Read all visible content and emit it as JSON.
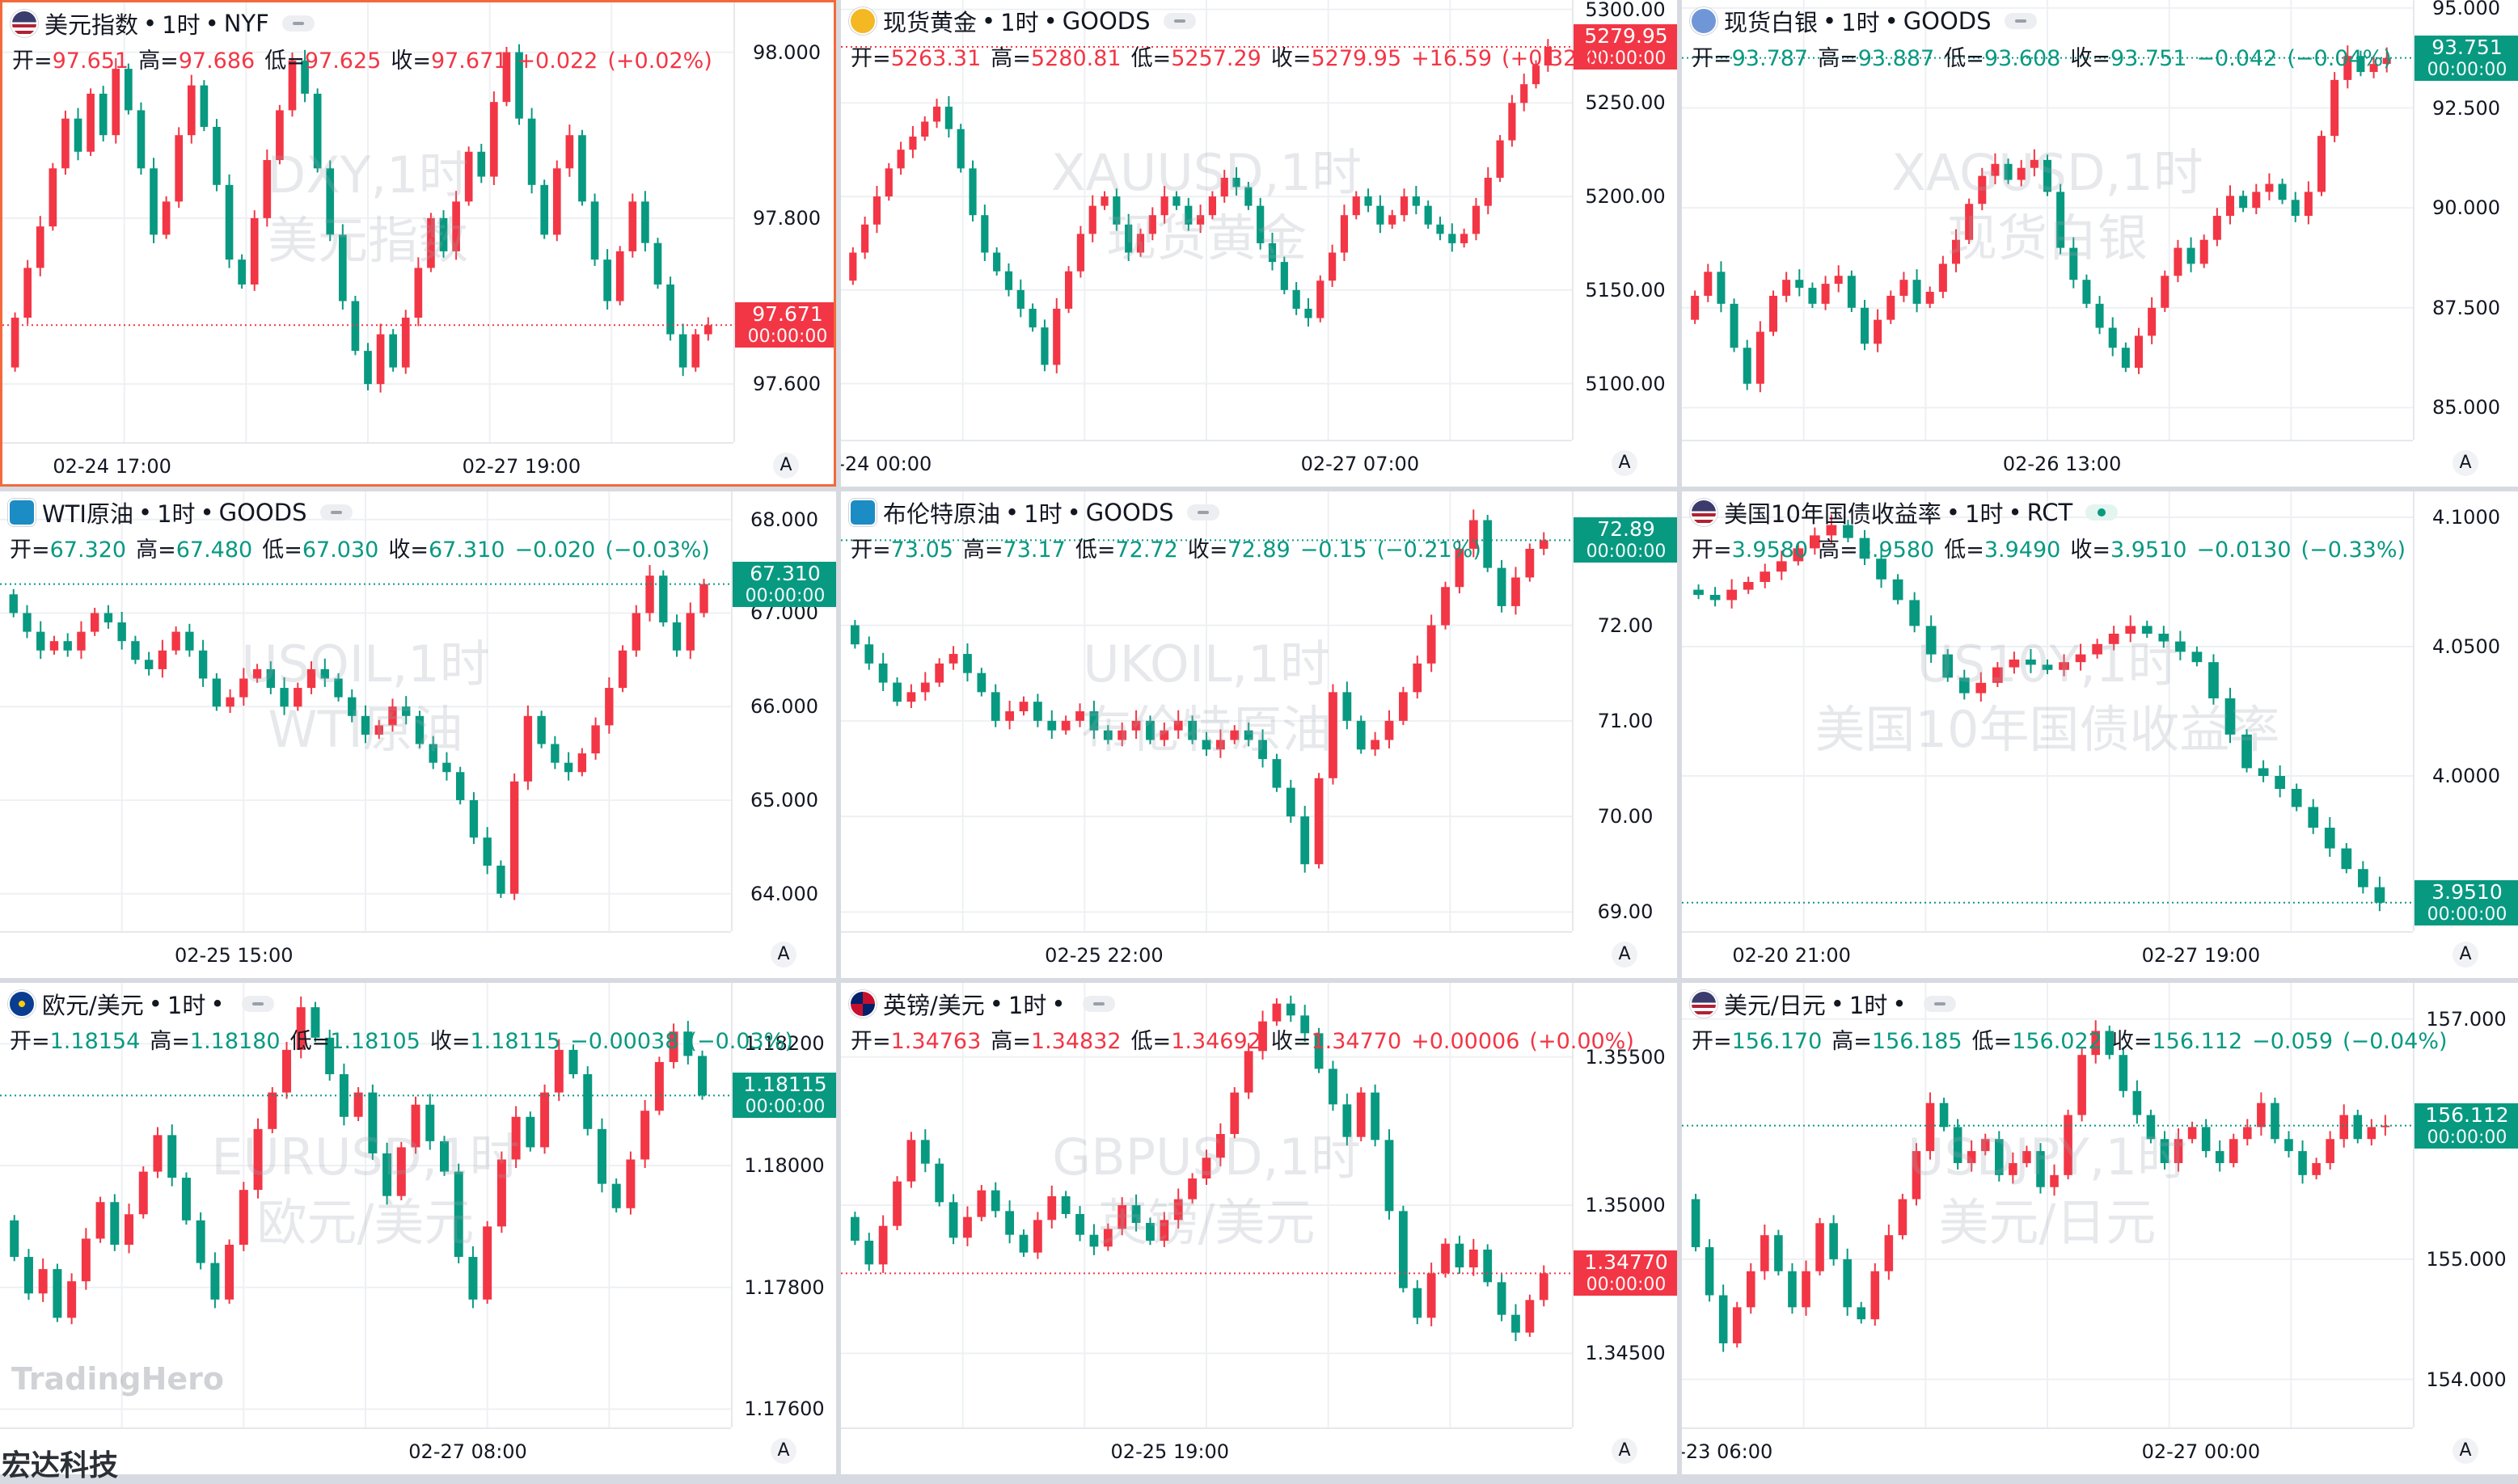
{
  "brand": {
    "logo": "TradingHero",
    "company": "宏达科技"
  },
  "colors": {
    "up": "#f23645",
    "down": "#089981",
    "active_border": "#f26a3c"
  },
  "charts": [
    {
      "id": "dxy",
      "name": "美元指数",
      "interval": "1时",
      "source": "NYF",
      "flag": "us",
      "icon": "us-flag-icon",
      "ohlc": {
        "open": "97.651",
        "high": "97.686",
        "low": "97.625",
        "close": "97.671",
        "change": "+0.022",
        "change_pct": "(+0.02%)"
      },
      "direction": "up",
      "active": true,
      "watermark": {
        "symbol": "DXY,1时",
        "desc": "美元指数"
      },
      "y_ticks": [
        "98.000",
        "97.800",
        "97.600"
      ],
      "y_range": [
        97.53,
        98.06
      ],
      "price": {
        "value": "97.671",
        "time": "00:00:00",
        "level": 97.671
      },
      "x_ticks": [
        "02-24 17:00",
        "02-27 19:00"
      ],
      "x_tick_pos": [
        0.15,
        0.71
      ],
      "series": [
        97.68,
        97.74,
        97.79,
        97.86,
        97.92,
        97.88,
        97.95,
        97.9,
        97.98,
        97.93,
        97.86,
        97.78,
        97.82,
        97.9,
        97.96,
        97.91,
        97.84,
        97.75,
        97.72,
        97.8,
        97.87,
        97.93,
        97.99,
        97.95,
        97.86,
        97.78,
        97.7,
        97.64,
        97.6,
        97.66,
        97.62,
        97.68,
        97.74,
        97.8,
        97.76,
        97.82,
        97.88,
        97.85,
        97.94,
        98.0,
        97.92,
        97.84,
        97.78,
        97.86,
        97.9,
        97.82,
        97.75,
        97.7,
        97.76,
        97.82,
        97.77,
        97.72,
        97.66,
        97.62,
        97.66,
        97.671
      ],
      "plot": {
        "top": 60,
        "bottom": 520
      }
    },
    {
      "id": "xau",
      "name": "现货黄金",
      "interval": "1时",
      "source": "GOODS",
      "flag": "gold",
      "icon": "gold-coin-icon",
      "ohlc": {
        "open": "5263.31",
        "high": "5280.81",
        "low": "5257.29",
        "close": "5279.95",
        "change": "+16.59",
        "change_pct": "(+0.32%)"
      },
      "direction": "up",
      "active": false,
      "watermark": {
        "symbol": "XAUUSD,1时",
        "desc": "现货黄金"
      },
      "y_ticks": [
        "5300.00",
        "5250.00",
        "5200.00",
        "5150.00",
        "5100.00"
      ],
      "y_range": [
        5070,
        5305
      ],
      "price": {
        "value": "5279.95",
        "time": "00:00:00",
        "level": 5279.95
      },
      "x_ticks": [
        "-24 00:00",
        "02-27 07:00"
      ],
      "x_tick_pos": [
        0.06,
        0.71
      ],
      "series": [
        5170,
        5185,
        5200,
        5215,
        5225,
        5232,
        5240,
        5248,
        5236,
        5215,
        5190,
        5170,
        5160,
        5150,
        5140,
        5130,
        5110,
        5140,
        5160,
        5180,
        5195,
        5200,
        5185,
        5170,
        5180,
        5190,
        5200,
        5195,
        5185,
        5190,
        5200,
        5210,
        5205,
        5195,
        5175,
        5165,
        5150,
        5140,
        5135,
        5155,
        5170,
        5190,
        5200,
        5195,
        5185,
        5190,
        5200,
        5195,
        5185,
        5180,
        5175,
        5180,
        5195,
        5210,
        5230,
        5250,
        5260,
        5270,
        5279.95
      ],
      "plot": {
        "top": 60,
        "bottom": 500
      }
    },
    {
      "id": "xag",
      "name": "现货白银",
      "interval": "1时",
      "source": "GOODS",
      "flag": "silver",
      "icon": "silver-icon",
      "ohlc": {
        "open": "93.787",
        "high": "93.887",
        "low": "93.608",
        "close": "93.751",
        "change": "−0.042",
        "change_pct": "(−0.04%)"
      },
      "direction": "down",
      "active": false,
      "watermark": {
        "symbol": "XAGUSD,1时",
        "desc": "现货白银"
      },
      "y_ticks": [
        "95.000",
        "92.500",
        "90.000",
        "87.500",
        "85.000"
      ],
      "y_range": [
        84.2,
        95.2
      ],
      "price": {
        "value": "93.751",
        "time": "00:00:00",
        "level": 93.751
      },
      "x_ticks": [
        "02-26 13:00"
      ],
      "x_tick_pos": [
        0.52
      ],
      "series": [
        87.8,
        88.4,
        87.6,
        86.5,
        85.6,
        86.9,
        87.8,
        88.2,
        88.0,
        87.6,
        88.1,
        88.3,
        87.5,
        86.6,
        87.2,
        87.8,
        88.2,
        87.6,
        87.9,
        88.6,
        89.2,
        90.1,
        90.8,
        91.1,
        90.7,
        91.0,
        91.2,
        90.4,
        89.0,
        88.2,
        87.6,
        87.0,
        86.5,
        86.0,
        86.8,
        87.5,
        88.3,
        89.0,
        88.6,
        89.2,
        89.8,
        90.3,
        90.0,
        90.4,
        90.6,
        90.2,
        89.8,
        90.4,
        91.8,
        93.2,
        93.8,
        93.4,
        93.6,
        93.751
      ],
      "plot": {
        "top": 60,
        "bottom": 500
      }
    },
    {
      "id": "usoil",
      "name": "WTI原油",
      "interval": "1时",
      "source": "GOODS",
      "flag": "oil",
      "icon": "oil-barrel-icon",
      "ohlc": {
        "open": "67.320",
        "high": "67.480",
        "low": "67.030",
        "close": "67.310",
        "change": "−0.020",
        "change_pct": "(−0.03%)"
      },
      "direction": "down",
      "active": false,
      "watermark": {
        "symbol": "USOIL,1时",
        "desc": "WTI原油"
      },
      "y_ticks": [
        "68.000",
        "67.000",
        "66.000",
        "65.000",
        "64.000"
      ],
      "y_range": [
        63.6,
        68.3
      ],
      "price": {
        "value": "67.310",
        "time": "00:00:00",
        "level": 67.31
      },
      "x_ticks": [
        "02-25 15:00"
      ],
      "x_tick_pos": [
        0.32
      ],
      "series": [
        67.0,
        66.8,
        66.6,
        66.7,
        66.6,
        66.8,
        67.0,
        66.9,
        66.7,
        66.5,
        66.4,
        66.6,
        66.8,
        66.6,
        66.3,
        66.0,
        66.1,
        66.3,
        66.4,
        66.2,
        66.0,
        66.2,
        66.4,
        66.3,
        66.1,
        65.9,
        65.7,
        65.8,
        66.0,
        65.9,
        65.6,
        65.4,
        65.3,
        65.0,
        64.6,
        64.3,
        64.0,
        65.2,
        65.9,
        65.6,
        65.4,
        65.3,
        65.5,
        65.8,
        66.2,
        66.6,
        67.0,
        67.4,
        66.9,
        66.6,
        67.0,
        67.31
      ],
      "plot": {
        "top": 60,
        "bottom": 500
      }
    },
    {
      "id": "ukoil",
      "name": "布伦特原油",
      "interval": "1时",
      "source": "GOODS",
      "flag": "oil",
      "icon": "oil-barrel-icon",
      "ohlc": {
        "open": "73.05",
        "high": "73.17",
        "low": "72.72",
        "close": "72.89",
        "change": "−0.15",
        "change_pct": "(−0.21%)"
      },
      "direction": "down",
      "active": false,
      "watermark": {
        "symbol": "UKOIL,1时",
        "desc": "布伦特原油"
      },
      "y_ticks": [
        "72.00",
        "71.00",
        "70.00",
        "69.00"
      ],
      "y_range": [
        68.8,
        73.4
      ],
      "price": {
        "value": "72.89",
        "time": "00:00:00",
        "level": 72.89
      },
      "x_ticks": [
        "02-25 22:00"
      ],
      "x_tick_pos": [
        0.36
      ],
      "series": [
        71.8,
        71.6,
        71.4,
        71.2,
        71.3,
        71.4,
        71.6,
        71.7,
        71.5,
        71.3,
        71.0,
        71.1,
        71.2,
        71.0,
        70.9,
        71.0,
        71.1,
        70.9,
        70.8,
        70.9,
        71.0,
        70.8,
        70.9,
        71.0,
        70.8,
        70.7,
        70.8,
        70.9,
        70.8,
        70.6,
        70.3,
        70.0,
        69.5,
        70.4,
        71.3,
        71.0,
        70.7,
        70.8,
        71.0,
        71.3,
        71.6,
        72.0,
        72.4,
        72.8,
        73.1,
        72.6,
        72.2,
        72.5,
        72.8,
        72.89
      ],
      "plot": {
        "top": 60,
        "bottom": 500
      }
    },
    {
      "id": "us10y",
      "name": "美国10年国债收益率",
      "interval": "1时",
      "source": "RCT",
      "flag": "us",
      "icon": "us-flag-icon",
      "ohlc": {
        "open": "3.9580",
        "high": "3.9580",
        "low": "3.9490",
        "close": "3.9510",
        "change": "−0.0130",
        "change_pct": "(−0.33%)"
      },
      "direction": "down",
      "active": false,
      "live": true,
      "watermark": {
        "symbol": "US10Y,1时",
        "desc": "美国10年国债收益率"
      },
      "y_ticks": [
        "4.1000",
        "4.0500",
        "4.0000"
      ],
      "y_range": [
        3.94,
        4.11
      ],
      "price": {
        "value": "3.9510",
        "time": "00:00:00",
        "level": 3.951
      },
      "x_ticks": [
        "02-20 21:00",
        "02-27 19:00"
      ],
      "x_tick_pos": [
        0.15,
        0.71
      ],
      "series": [
        4.07,
        4.068,
        4.072,
        4.075,
        4.079,
        4.083,
        4.088,
        4.093,
        4.097,
        4.092,
        4.084,
        4.076,
        4.068,
        4.058,
        4.047,
        4.038,
        4.032,
        4.036,
        4.042,
        4.045,
        4.043,
        4.041,
        4.044,
        4.047,
        4.051,
        4.055,
        4.058,
        4.055,
        4.052,
        4.048,
        4.044,
        4.03,
        4.016,
        4.003,
        4.0,
        3.995,
        3.988,
        3.98,
        3.972,
        3.964,
        3.957,
        3.951
      ],
      "plot": {
        "top": 60,
        "bottom": 500
      }
    },
    {
      "id": "eurusd",
      "name": "欧元/美元",
      "interval": "1时",
      "source": "",
      "flag": "eu",
      "icon": "eu-flag-icon",
      "ohlc": {
        "open": "1.18154",
        "high": "1.18180",
        "low": "1.18105",
        "close": "1.18115",
        "change": "−0.00038",
        "change_pct": "(−0.03%)"
      },
      "direction": "down",
      "active": false,
      "watermark": {
        "symbol": "EURUSD,1时",
        "desc": "欧元/美元"
      },
      "y_ticks": [
        "1.18200",
        "1.18000",
        "1.17800",
        "1.17600"
      ],
      "y_range": [
        1.1757,
        1.183
      ],
      "price": {
        "value": "1.18115",
        "time": "00:00:00",
        "level": 1.18115
      },
      "x_ticks": [
        "02-27 08:00"
      ],
      "x_tick_pos": [
        0.64
      ],
      "series": [
        1.1785,
        1.1779,
        1.1783,
        1.1775,
        1.1781,
        1.1788,
        1.1794,
        1.1787,
        1.1792,
        1.1799,
        1.1805,
        1.1798,
        1.1791,
        1.1784,
        1.1778,
        1.1787,
        1.1796,
        1.1806,
        1.1812,
        1.1819,
        1.1826,
        1.1821,
        1.1815,
        1.1808,
        1.1812,
        1.1802,
        1.1795,
        1.1803,
        1.181,
        1.1804,
        1.1799,
        1.1785,
        1.1778,
        1.179,
        1.1801,
        1.1808,
        1.1803,
        1.1812,
        1.1819,
        1.1815,
        1.1806,
        1.1797,
        1.1793,
        1.1801,
        1.1809,
        1.1817,
        1.1822,
        1.1818,
        1.18115
      ],
      "plot": {
        "top": 60,
        "bottom": 500
      }
    },
    {
      "id": "gbpusd",
      "name": "英镑/美元",
      "interval": "1时",
      "source": "",
      "flag": "gb",
      "icon": "gb-flag-icon",
      "ohlc": {
        "open": "1.34763",
        "high": "1.34832",
        "low": "1.34692",
        "close": "1.34770",
        "change": "+0.00006",
        "change_pct": "(+0.00%)"
      },
      "direction": "up",
      "active": false,
      "watermark": {
        "symbol": "GBPUSD,1时",
        "desc": "英镑/美元"
      },
      "y_ticks": [
        "1.35500",
        "1.35000",
        "1.34500"
      ],
      "y_range": [
        1.3425,
        1.3575
      ],
      "price": {
        "value": "1.34770",
        "time": "00:00:00",
        "level": 1.3477
      },
      "x_ticks": [
        "02-25 19:00"
      ],
      "x_tick_pos": [
        0.45
      ],
      "series": [
        1.3488,
        1.348,
        1.3493,
        1.3508,
        1.3522,
        1.3514,
        1.3501,
        1.3489,
        1.3496,
        1.3505,
        1.3498,
        1.349,
        1.3484,
        1.3495,
        1.3503,
        1.3497,
        1.349,
        1.3486,
        1.3492,
        1.35,
        1.3494,
        1.3488,
        1.3495,
        1.3502,
        1.3509,
        1.3516,
        1.3524,
        1.3538,
        1.3552,
        1.3562,
        1.3568,
        1.3564,
        1.3558,
        1.3546,
        1.3534,
        1.3523,
        1.3538,
        1.3522,
        1.3498,
        1.3472,
        1.3462,
        1.3477,
        1.3487,
        1.3479,
        1.3485,
        1.3474,
        1.3463,
        1.3457,
        1.3468,
        1.3477
      ],
      "plot": {
        "top": 60,
        "bottom": 500
      }
    },
    {
      "id": "usdjpy",
      "name": "美元/日元",
      "interval": "1时",
      "source": "",
      "flag": "us",
      "icon": "us-flag-icon",
      "ohlc": {
        "open": "156.170",
        "high": "156.185",
        "low": "156.022",
        "close": "156.112",
        "change": "−0.059",
        "change_pct": "(−0.04%)"
      },
      "direction": "down",
      "active": false,
      "watermark": {
        "symbol": "USDJPY,1时",
        "desc": "美元/日元"
      },
      "y_ticks": [
        "157.000",
        "155.000",
        "154.000"
      ],
      "y_range": [
        153.6,
        157.3
      ],
      "price": {
        "value": "156.112",
        "time": "00:00:00",
        "level": 156.112
      },
      "x_ticks": [
        "-23 06:00",
        "02-27 00:00"
      ],
      "x_tick_pos": [
        0.06,
        0.71
      ],
      "series": [
        155.1,
        154.7,
        154.3,
        154.6,
        154.9,
        155.2,
        154.9,
        154.6,
        154.9,
        155.3,
        155.0,
        154.6,
        154.5,
        154.9,
        155.2,
        155.5,
        155.9,
        156.3,
        156.1,
        155.8,
        155.9,
        156.0,
        155.7,
        155.8,
        155.9,
        155.6,
        155.7,
        156.2,
        156.7,
        156.9,
        156.7,
        156.4,
        156.2,
        156.0,
        155.8,
        156.0,
        156.1,
        155.9,
        155.8,
        156.0,
        156.1,
        156.3,
        156.0,
        155.9,
        155.7,
        155.8,
        156.0,
        156.2,
        156.0,
        156.1,
        156.112
      ],
      "plot": {
        "top": 60,
        "bottom": 500
      }
    }
  ]
}
